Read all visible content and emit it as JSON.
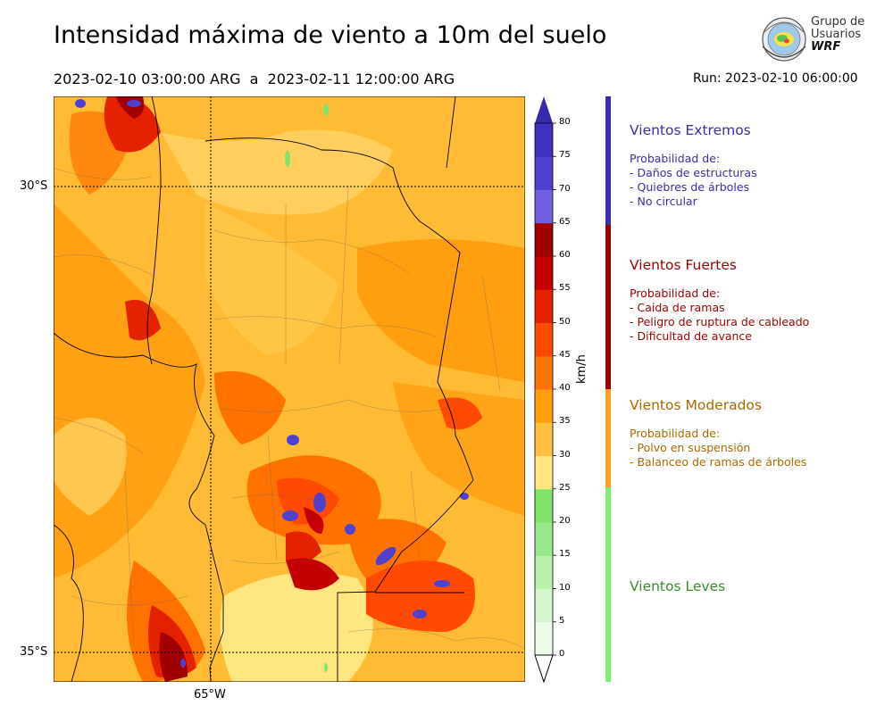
{
  "title": "Intensidad máxima de viento a 10m del suelo",
  "subtitle": "2023-02-10 03:00:00 ARG  a  2023-02-11 12:00:00 ARG",
  "run": "Run: 2023-02-10 06:00:00",
  "logo": {
    "line1": "Grupo de",
    "line2": "Usuarios",
    "line3": "WRF"
  },
  "map": {
    "lat_labels": [
      "30°S",
      "35°S"
    ],
    "lon_labels": [
      "65°W"
    ]
  },
  "colorbar": {
    "unit": "km/h",
    "ticks": [
      "0",
      "5",
      "10",
      "15",
      "20",
      "25",
      "30",
      "35",
      "40",
      "45",
      "50",
      "55",
      "60",
      "65",
      "70",
      "75",
      "80"
    ],
    "colors": [
      "#ecfbe8",
      "#d4f6cc",
      "#b8f0ac",
      "#99e98c",
      "#7ee46c",
      "#ffe680",
      "#ffc040",
      "#ff9f10",
      "#ff7200",
      "#ff4a00",
      "#e52200",
      "#c40000",
      "#a00000",
      "#7060e0",
      "#5040d0",
      "#4030c0"
    ],
    "extend_top_color": "#3828b0"
  },
  "categories": [
    {
      "title": "Vientos Extremos",
      "color": "#3a2ea8",
      "strip": "#3a2ea8",
      "lines": [
        "Probabilidad de:",
        "- Daños de estructuras",
        "- Quiebres de árboles",
        "- No circular"
      ]
    },
    {
      "title": "Vientos Fuertes",
      "color": "#9c0000",
      "strip": "#9c0000",
      "lines": [
        "Probabilidad de:",
        "- Caida de ramas",
        "- Peligro de ruptura de cableado",
        "- Dificultad de avance"
      ]
    },
    {
      "title": "Vientos Moderados",
      "color": "#a86a00",
      "strip": "#ffa020",
      "lines": [
        "Probabilidad de:",
        "- Polvo en suspensión",
        "- Balanceo de ramas de árboles"
      ]
    },
    {
      "title": "Vientos Leves",
      "color": "#3a8a30",
      "strip": "#80ee70",
      "lines": []
    }
  ]
}
